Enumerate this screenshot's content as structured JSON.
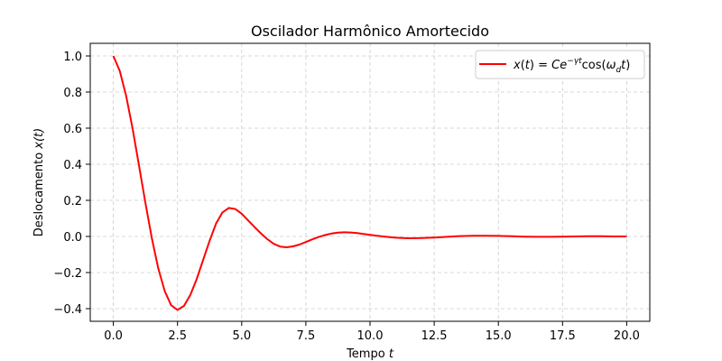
{
  "chart_data": {
    "type": "line",
    "title": "Oscilador Harmônico Amortecido",
    "xlabel": {
      "text": "Tempo ",
      "var": "t"
    },
    "ylabel": {
      "text": "Deslocamento ",
      "var": "x(t)"
    },
    "xlim": [
      -0.9,
      20.9
    ],
    "ylim": [
      -0.47,
      1.07
    ],
    "xticks": [
      0.0,
      2.5,
      5.0,
      7.5,
      10.0,
      12.5,
      15.0,
      17.5,
      20.0
    ],
    "xtick_labels": [
      "0.0",
      "2.5",
      "5.0",
      "7.5",
      "10.0",
      "12.5",
      "15.0",
      "17.5",
      "20.0"
    ],
    "yticks": [
      -0.4,
      -0.2,
      0.0,
      0.2,
      0.4,
      0.6,
      0.8,
      1.0
    ],
    "ytick_labels": [
      "−0.4",
      "−0.2",
      "0.0",
      "0.2",
      "0.4",
      "0.6",
      "0.8",
      "1.0"
    ],
    "grid": true,
    "legend_position": "upper-right",
    "series": [
      {
        "name": "x(t) = Ce^{−γt} cos(ω_d t)",
        "color": "#ff0000",
        "x": [
          0.0,
          0.25,
          0.5,
          0.75,
          1.0,
          1.25,
          1.5,
          1.75,
          2.0,
          2.25,
          2.5,
          2.75,
          3.0,
          3.25,
          3.5,
          3.75,
          4.0,
          4.25,
          4.5,
          4.75,
          5.0,
          5.25,
          5.5,
          5.75,
          6.0,
          6.25,
          6.5,
          6.75,
          7.0,
          7.25,
          7.5,
          7.75,
          8.0,
          8.25,
          8.5,
          8.75,
          9.0,
          9.25,
          9.5,
          9.75,
          10.0,
          10.5,
          11.0,
          11.5,
          12.0,
          12.5,
          13.0,
          13.5,
          14.0,
          14.5,
          15.0,
          15.5,
          16.0,
          16.5,
          17.0,
          17.5,
          18.0,
          18.5,
          19.0,
          19.5,
          20.0
        ],
        "y": [
          1.0,
          0.917,
          0.778,
          0.597,
          0.392,
          0.185,
          -0.01,
          -0.177,
          -0.302,
          -0.381,
          -0.407,
          -0.385,
          -0.324,
          -0.235,
          -0.129,
          -0.024,
          0.071,
          0.133,
          0.158,
          0.152,
          0.126,
          0.089,
          0.052,
          0.017,
          -0.015,
          -0.041,
          -0.056,
          -0.06,
          -0.055,
          -0.045,
          -0.031,
          -0.016,
          -0.003,
          0.008,
          0.016,
          0.021,
          0.023,
          0.022,
          0.019,
          0.014,
          0.009,
          0.0,
          -0.007,
          -0.01,
          -0.009,
          -0.006,
          -0.002,
          0.002,
          0.004,
          0.004,
          0.003,
          0.001,
          -0.001,
          -0.002,
          -0.002,
          -0.001,
          0.0,
          0.001,
          0.001,
          0.0,
          0.0
        ]
      }
    ]
  }
}
